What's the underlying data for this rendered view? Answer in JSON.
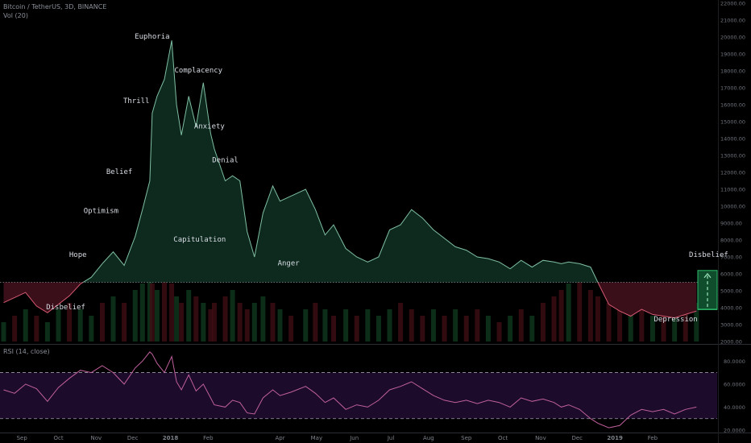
{
  "header": {
    "symbol": "Bitcoin / TetherUS, 3D, BINANCE",
    "volume": "Vol (20)",
    "rsi": "RSI (14, close)"
  },
  "colors": {
    "background": "#000000",
    "price_line_above": "#7fbfa3",
    "price_line_below": "#d85a72",
    "fill_above": "#0e2a1f",
    "fill_below": "#3a0f1a",
    "vol_up": "#0f3a1e",
    "vol_down": "#3e0e14",
    "rsi_line": "#c0609e",
    "rsi_band": "#1c0b2a",
    "projection": "#2ebd6b"
  },
  "chart_data": [
    {
      "type": "area",
      "baseline": 5500,
      "ylim": [
        2000,
        22000
      ],
      "y_ticks": [
        "22000.00",
        "21000.00",
        "20000.00",
        "19000.00",
        "18000.00",
        "17000.00",
        "16000.00",
        "15000.00",
        "14000.00",
        "13000.00",
        "12000.00",
        "11000.00",
        "10000.00",
        "9000.00",
        "8000.00",
        "7000.00",
        "6000.00",
        "5000.00",
        "4000.00",
        "3000.00",
        "2000.00"
      ],
      "x_ticks": [
        "Sep",
        "Oct",
        "Nov",
        "Dec",
        "2018",
        "Feb",
        "Apr",
        "May",
        "Jun",
        "Jul",
        "Aug",
        "Sep",
        "Oct",
        "Nov",
        "Dec",
        "2019",
        "Feb"
      ],
      "x": [
        "2017-08-17",
        "2017-08-26",
        "2017-09-04",
        "2017-09-13",
        "2017-09-22",
        "2017-10-01",
        "2017-10-10",
        "2017-10-19",
        "2017-10-28",
        "2017-11-06",
        "2017-11-15",
        "2017-11-24",
        "2017-12-03",
        "2017-12-09",
        "2017-12-15",
        "2017-12-17",
        "2017-12-21",
        "2017-12-27",
        "2018-01-02",
        "2018-01-06",
        "2018-01-10",
        "2018-01-16",
        "2018-01-22",
        "2018-01-28",
        "2018-02-03",
        "2018-02-06",
        "2018-02-15",
        "2018-02-21",
        "2018-02-27",
        "2018-03-05",
        "2018-03-11",
        "2018-03-18",
        "2018-03-26",
        "2018-04-01",
        "2018-04-10",
        "2018-04-22",
        "2018-04-30",
        "2018-05-08",
        "2018-05-15",
        "2018-05-25",
        "2018-06-03",
        "2018-06-12",
        "2018-06-21",
        "2018-06-30",
        "2018-07-09",
        "2018-07-18",
        "2018-07-27",
        "2018-08-05",
        "2018-08-14",
        "2018-08-23",
        "2018-09-01",
        "2018-09-10",
        "2018-09-19",
        "2018-09-28",
        "2018-10-07",
        "2018-10-16",
        "2018-10-25",
        "2018-11-03",
        "2018-11-12",
        "2018-11-18",
        "2018-11-24",
        "2018-12-03",
        "2018-12-12",
        "2018-12-18",
        "2018-12-27",
        "2019-01-05",
        "2019-01-14",
        "2019-01-23",
        "2019-02-01",
        "2019-02-10",
        "2019-02-19",
        "2019-02-28",
        "2019-03-09"
      ],
      "y": [
        4300,
        4600,
        4900,
        4100,
        3700,
        4200,
        4700,
        5400,
        5800,
        6600,
        7300,
        6500,
        8200,
        9800,
        11500,
        15500,
        16500,
        17500,
        19800,
        16000,
        14200,
        16500,
        14700,
        17300,
        14300,
        13400,
        11500,
        11800,
        11500,
        8500,
        7000,
        9600,
        11200,
        10300,
        10600,
        11000,
        9800,
        8300,
        8900,
        7500,
        7000,
        6700,
        7000,
        8600,
        8900,
        9800,
        9300,
        8600,
        8100,
        7600,
        7400,
        7000,
        6900,
        6700,
        6300,
        6800,
        6400,
        6800,
        6700,
        6600,
        6700,
        6600,
        6400,
        5500,
        4200,
        3800,
        3500,
        3900,
        3600,
        3500,
        3400,
        3600,
        3800
      ],
      "labels": [
        {
          "text": "Euphoria",
          "x": "2017-12-17",
          "y": 19900
        },
        {
          "text": "Complacency",
          "x": "2018-01-24",
          "y": 17900
        },
        {
          "text": "Thrill",
          "x": "2017-12-04",
          "y": 16100
        },
        {
          "text": "Anxiety",
          "x": "2018-02-02",
          "y": 14600
        },
        {
          "text": "Denial",
          "x": "2018-02-15",
          "y": 12600
        },
        {
          "text": "Belief",
          "x": "2017-11-20",
          "y": 11900
        },
        {
          "text": "Optimism",
          "x": "2017-11-05",
          "y": 9600
        },
        {
          "text": "Capitulation",
          "x": "2018-01-25",
          "y": 7900
        },
        {
          "text": "Anger",
          "x": "2018-04-08",
          "y": 6500
        },
        {
          "text": "Hope",
          "x": "2017-10-17",
          "y": 7000
        },
        {
          "text": "Disbelief",
          "x": "2017-10-07",
          "y": 3900
        },
        {
          "text": "Depression",
          "x": "2019-02-20",
          "y": 3200
        },
        {
          "text": "Disbelief",
          "x": "2019-03-19",
          "y": 7000
        }
      ],
      "projection": {
        "from": 3900,
        "to": 6200
      }
    },
    {
      "type": "bar",
      "title": "Vol (20)",
      "values": [
        3,
        4,
        5,
        4,
        3,
        5,
        6,
        5,
        4,
        6,
        7,
        6,
        8,
        9,
        10,
        9,
        8,
        10,
        9,
        7,
        6,
        8,
        7,
        6,
        5,
        6,
        7,
        8,
        6,
        5,
        6,
        7,
        6,
        5,
        4,
        5,
        6,
        5,
        4,
        5,
        4,
        5,
        4,
        5,
        6,
        5,
        4,
        5,
        4,
        5,
        4,
        5,
        4,
        3,
        4,
        5,
        4,
        6,
        7,
        8,
        9,
        10,
        8,
        7,
        6,
        5,
        6,
        5,
        4,
        5,
        4,
        5,
        6
      ],
      "directions": [
        "u",
        "d",
        "u",
        "d",
        "u",
        "u",
        "d",
        "u",
        "u",
        "d",
        "u",
        "d",
        "u",
        "u",
        "u",
        "d",
        "u",
        "d",
        "d",
        "u",
        "d",
        "u",
        "d",
        "u",
        "d",
        "d",
        "d",
        "u",
        "d",
        "d",
        "u",
        "u",
        "d",
        "u",
        "d",
        "u",
        "d",
        "u",
        "d",
        "u",
        "d",
        "u",
        "u",
        "u",
        "d",
        "d",
        "d",
        "u",
        "d",
        "u",
        "d",
        "d",
        "u",
        "d",
        "u",
        "d",
        "u",
        "d",
        "d",
        "d",
        "u",
        "d",
        "d",
        "d",
        "d",
        "d",
        "u",
        "d",
        "u",
        "d",
        "u",
        "d",
        "u"
      ]
    },
    {
      "type": "line",
      "title": "RSI (14, close)",
      "ylim": [
        20,
        90
      ],
      "y_ticks": [
        "80.0000",
        "60.0000",
        "40.0000",
        "20.0000"
      ],
      "bands": [
        70,
        30
      ],
      "values": [
        55,
        52,
        60,
        56,
        45,
        57,
        65,
        72,
        70,
        76,
        70,
        60,
        74,
        80,
        88,
        86,
        78,
        70,
        84,
        62,
        55,
        68,
        54,
        60,
        48,
        42,
        40,
        46,
        44,
        35,
        34,
        48,
        55,
        50,
        53,
        58,
        52,
        44,
        48,
        38,
        42,
        40,
        46,
        55,
        58,
        62,
        56,
        50,
        46,
        44,
        46,
        43,
        46,
        44,
        40,
        48,
        45,
        47,
        44,
        40,
        42,
        38,
        30,
        26,
        22,
        24,
        33,
        38,
        36,
        38,
        34,
        38,
        40
      ]
    }
  ]
}
